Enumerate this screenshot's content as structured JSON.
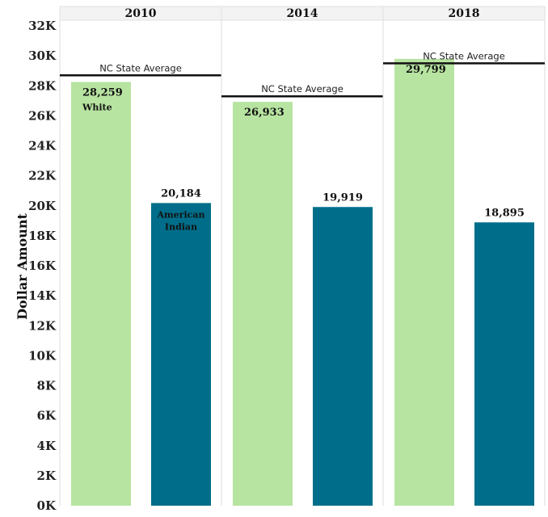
{
  "chart_data": {
    "type": "bar",
    "ylabel": "Dollar Amount",
    "ylim": [
      0,
      32000
    ],
    "yticks": [
      "0K",
      "2K",
      "4K",
      "6K",
      "8K",
      "10K",
      "12K",
      "14K",
      "16K",
      "18K",
      "20K",
      "22K",
      "24K",
      "26K",
      "28K",
      "30K",
      "32K"
    ],
    "categories": [
      "2010",
      "2014",
      "2018"
    ],
    "series": [
      {
        "name": "White",
        "color": "#b7e4a1",
        "values": [
          28259,
          26933,
          29799
        ],
        "labels": [
          "28,259",
          "26,933",
          "29,799"
        ]
      },
      {
        "name": "American Indian",
        "color": "#006e8a",
        "values": [
          20184,
          19919,
          18895
        ],
        "labels": [
          "20,184",
          "19,919",
          "18,895"
        ]
      }
    ],
    "reference_line": {
      "label": "NC State Average",
      "values": [
        28700,
        27300,
        29500
      ]
    },
    "grid": false
  }
}
